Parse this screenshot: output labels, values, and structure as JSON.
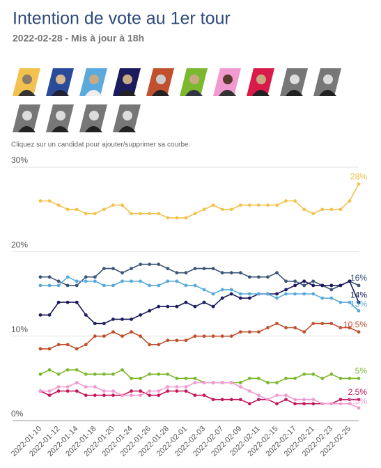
{
  "chart_data": {
    "type": "line",
    "title": "Intention de vote au 1er tour",
    "subtitle": "2022-02-28 - Mis à jour à 18h",
    "note": "Cliquez sur un candidat pour ajouter/supprimer sa courbe.",
    "categories": [
      "2022-01-10",
      null,
      "2022-01-12",
      null,
      "2022-01-14",
      null,
      "2022-01-18",
      null,
      "2022-01-20",
      null,
      "2022-01-24",
      null,
      "2022-01-26",
      null,
      "2022-01-28",
      null,
      "2022-02-01",
      null,
      "2022-02-03",
      null,
      "2022-02-07",
      null,
      "2022-02-09",
      null,
      "2022-02-11",
      null,
      "2022-02-15",
      null,
      "2022-02-17",
      null,
      "2022-02-21",
      null,
      "2022-02-23",
      null,
      "2022-02-25",
      null
    ],
    "ylim": [
      0,
      30
    ],
    "yticks": [
      {
        "value": 0,
        "label": "0%"
      },
      {
        "value": 10,
        "label": "10%"
      },
      {
        "value": 20,
        "label": "20%"
      },
      {
        "value": 30,
        "label": "30%"
      }
    ],
    "grid": true,
    "series": [
      {
        "color": "#f2c14e",
        "values": [
          26,
          26,
          25.5,
          25,
          25,
          24.5,
          24.5,
          25,
          25.5,
          25.5,
          24.5,
          24.5,
          24.5,
          24.5,
          24,
          24,
          24,
          24.5,
          25,
          25.5,
          25,
          25,
          25.5,
          25.5,
          25.5,
          25.5,
          25.5,
          26,
          26,
          25,
          24.5,
          25,
          25,
          25,
          26,
          28
        ],
        "end_label": "28%"
      },
      {
        "color": "#3b5578",
        "values": [
          17,
          17,
          16.5,
          16,
          16,
          17,
          17,
          18,
          18,
          17.5,
          18,
          18.5,
          18.5,
          18.5,
          18,
          17.5,
          17.5,
          18,
          18,
          18,
          17.5,
          17.5,
          17.5,
          17,
          17,
          17,
          17.5,
          16.5,
          16.5,
          16,
          16.5,
          16,
          15.5,
          16,
          16.5,
          16
        ],
        "end_label": "16%"
      },
      {
        "color": "#1b1b5e",
        "values": [
          12.5,
          12.5,
          14,
          14,
          14,
          12.5,
          11.5,
          11.5,
          12,
          12,
          12,
          12.5,
          13,
          13.5,
          13.5,
          13.5,
          14,
          13.5,
          14,
          13.5,
          14.5,
          15,
          14.5,
          14.5,
          15,
          15,
          15,
          15.5,
          16,
          16.5,
          16,
          16,
          16,
          16,
          16.5,
          14
        ],
        "end_label": "14%"
      },
      {
        "color": "#5aaadd",
        "values": [
          16,
          16,
          16,
          17,
          16.5,
          16.5,
          16.5,
          16,
          16,
          16.5,
          16.5,
          16.5,
          16,
          16,
          16.5,
          16.5,
          16,
          16,
          15.5,
          15,
          15.5,
          15.5,
          15,
          15,
          15,
          15,
          14.5,
          15,
          15,
          15,
          15,
          14.5,
          14.5,
          14,
          14,
          13
        ],
        "end_label": "13%"
      },
      {
        "color": "#c0502e",
        "values": [
          8.5,
          8.5,
          9,
          9,
          8.5,
          9,
          10,
          10,
          10.5,
          10,
          10.5,
          10,
          9,
          9,
          9.5,
          9.5,
          9.5,
          10,
          10,
          10,
          10,
          10,
          10.5,
          10.5,
          10.5,
          11,
          11.5,
          11,
          11,
          10.5,
          11.5,
          11.5,
          11.5,
          11,
          11,
          10.5
        ],
        "end_label": "10.5%"
      },
      {
        "color": "#7cb82f",
        "values": [
          5.5,
          6,
          5.5,
          6,
          6,
          5.5,
          5.5,
          5.5,
          5.5,
          6,
          5,
          5,
          5.5,
          5.5,
          5.5,
          5,
          5,
          5,
          4.5,
          4.5,
          4.5,
          4.5,
          4.5,
          5,
          5,
          4.5,
          4.5,
          5,
          5,
          5.5,
          5.5,
          5,
          5.5,
          5,
          5,
          5
        ],
        "end_label": "5%"
      },
      {
        "color": "#c2185b",
        "values": [
          3.5,
          3,
          3.5,
          3.5,
          3.5,
          3,
          3,
          3,
          3,
          3,
          3.5,
          3.5,
          3,
          3,
          3.5,
          3.5,
          3.5,
          3,
          3,
          2.5,
          2.5,
          2.5,
          2.5,
          2,
          2.5,
          2.5,
          2,
          2.5,
          2,
          2,
          2,
          2,
          2,
          2.5,
          2.5,
          2.5
        ],
        "end_label": "2.5%"
      },
      {
        "color": "#f09ad0",
        "values": [
          3.5,
          3.5,
          4,
          4,
          4.5,
          4,
          4,
          3.5,
          3.5,
          3,
          3,
          3,
          3.5,
          3.5,
          4,
          4,
          4,
          4.5,
          4.5,
          4.5,
          4.5,
          4.5,
          4,
          3.5,
          3,
          2.5,
          3,
          3,
          2.5,
          2.5,
          2.5,
          2,
          2,
          2,
          2,
          1.5
        ],
        "end_label": "1.5%"
      }
    ]
  }
}
